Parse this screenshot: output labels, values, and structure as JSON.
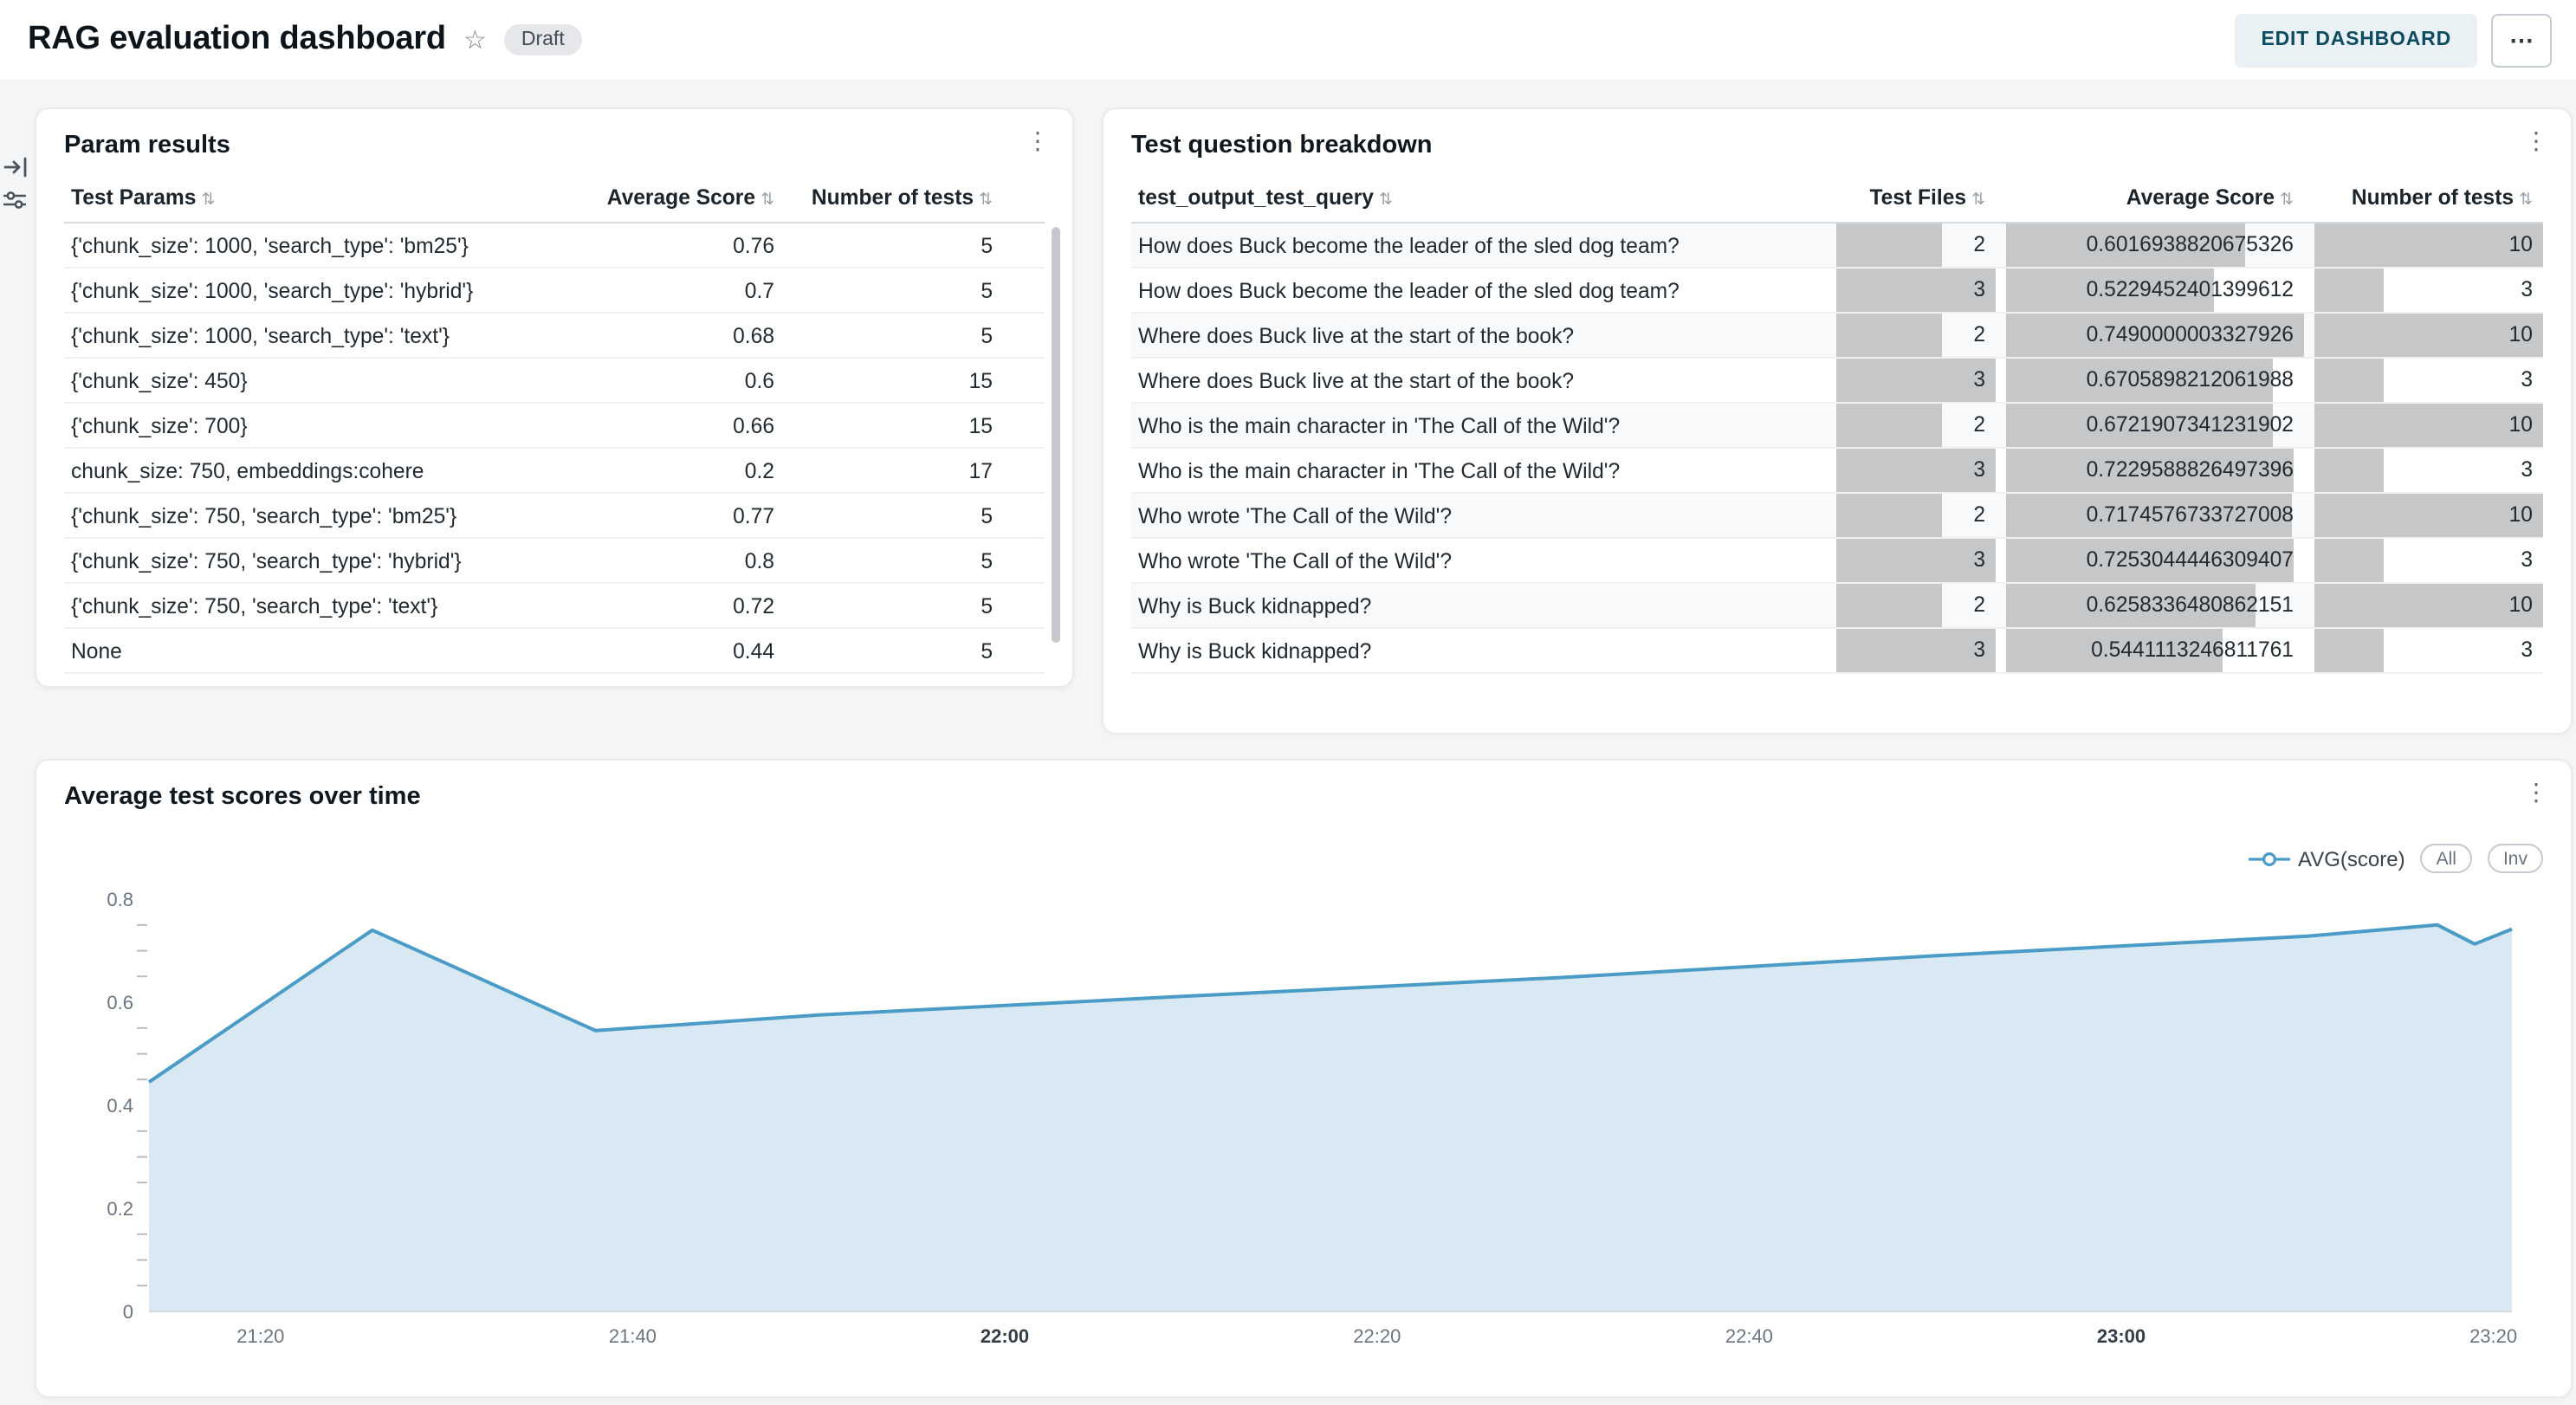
{
  "icons": {
    "sort": "⇅",
    "kebab": "⋮",
    "star": "☆",
    "more": "⋯"
  },
  "header": {
    "title": "RAG evaluation dashboard",
    "status_badge": "Draft",
    "edit_button": "EDIT DASHBOARD"
  },
  "panels": {
    "param_results": {
      "title": "Param results",
      "columns": [
        "Test Params",
        "Average Score",
        "Number of tests"
      ],
      "rows": [
        {
          "params": "{'chunk_size': 1000, 'search_type': 'bm25'}",
          "avg": "0.76",
          "tests": "5"
        },
        {
          "params": "{'chunk_size': 1000, 'search_type': 'hybrid'}",
          "avg": "0.7",
          "tests": "5"
        },
        {
          "params": "{'chunk_size': 1000, 'search_type': 'text'}",
          "avg": "0.68",
          "tests": "5"
        },
        {
          "params": "{'chunk_size': 450}",
          "avg": "0.6",
          "tests": "15"
        },
        {
          "params": "{'chunk_size': 700}",
          "avg": "0.66",
          "tests": "15"
        },
        {
          "params": "chunk_size: 750, embeddings:cohere",
          "avg": "0.2",
          "tests": "17"
        },
        {
          "params": "{'chunk_size': 750, 'search_type': 'bm25'}",
          "avg": "0.77",
          "tests": "5"
        },
        {
          "params": "{'chunk_size': 750, 'search_type': 'hybrid'}",
          "avg": "0.8",
          "tests": "5"
        },
        {
          "params": "{'chunk_size': 750, 'search_type': 'text'}",
          "avg": "0.72",
          "tests": "5"
        },
        {
          "params": "None",
          "avg": "0.44",
          "tests": "5"
        }
      ]
    },
    "question_breakdown": {
      "title": "Test question breakdown",
      "columns": [
        "test_output_test_query",
        "Test Files",
        "Average Score",
        "Number of tests"
      ],
      "bar_max": {
        "files": 3,
        "avg": 0.7490000003327926,
        "tests": 10
      },
      "rows": [
        {
          "query": "How does Buck become the leader of the sled dog team?",
          "files": "2",
          "avg": "0.6016938820675326",
          "tests": "10"
        },
        {
          "query": "How does Buck become the leader of the sled dog team?",
          "files": "3",
          "avg": "0.5229452401399612",
          "tests": "3"
        },
        {
          "query": "Where does Buck live at the start of the book?",
          "files": "2",
          "avg": "0.7490000003327926",
          "tests": "10"
        },
        {
          "query": "Where does Buck live at the start of the book?",
          "files": "3",
          "avg": "0.6705898212061988",
          "tests": "3"
        },
        {
          "query": "Who is the main character in 'The Call of the Wild'?",
          "files": "2",
          "avg": "0.6721907341231902",
          "tests": "10"
        },
        {
          "query": "Who is the main character in 'The Call of the Wild'?",
          "files": "3",
          "avg": "0.7229588826497396",
          "tests": "3"
        },
        {
          "query": "Who wrote 'The Call of the Wild'?",
          "files": "2",
          "avg": "0.7174576733727008",
          "tests": "10"
        },
        {
          "query": "Who wrote 'The Call of the Wild'?",
          "files": "3",
          "avg": "0.7253044446309407",
          "tests": "3"
        },
        {
          "query": "Why is Buck kidnapped?",
          "files": "2",
          "avg": "0.6258336480862151",
          "tests": "10"
        },
        {
          "query": "Why is Buck kidnapped?",
          "files": "3",
          "avg": "0.5441113246811761",
          "tests": "3"
        }
      ]
    },
    "chart": {
      "title": "Average test scores over time",
      "legend_label": "AVG(score)",
      "legend_buttons": [
        "All",
        "Inv"
      ]
    }
  },
  "chart_data": {
    "type": "area",
    "title": "Average test scores over time",
    "xlabel": "",
    "ylabel": "",
    "ylim": [
      0,
      0.8
    ],
    "y_ticks": [
      0,
      0.2,
      0.4,
      0.6,
      0.8
    ],
    "y_minor_step": 0.05,
    "x_ticks": [
      "21:20",
      "21:40",
      "22:00",
      "22:20",
      "22:40",
      "23:00",
      "23:20"
    ],
    "x_ticks_bold": [
      "22:00",
      "23:00"
    ],
    "grid": false,
    "legend": [
      "AVG(score)"
    ],
    "legend_position": "top-right",
    "line_color": "#4a9cc7",
    "fill_color": "#d9e9f3",
    "series": [
      {
        "name": "AVG(score)",
        "points": [
          [
            "21:14",
            0.445
          ],
          [
            "21:26",
            0.74
          ],
          [
            "21:38",
            0.545
          ],
          [
            "21:50",
            0.575
          ],
          [
            "22:10",
            0.612
          ],
          [
            "22:30",
            0.648
          ],
          [
            "22:50",
            0.69
          ],
          [
            "23:10",
            0.728
          ],
          [
            "23:17",
            0.75
          ],
          [
            "23:19",
            0.713
          ],
          [
            "23:21",
            0.742
          ]
        ]
      }
    ]
  }
}
